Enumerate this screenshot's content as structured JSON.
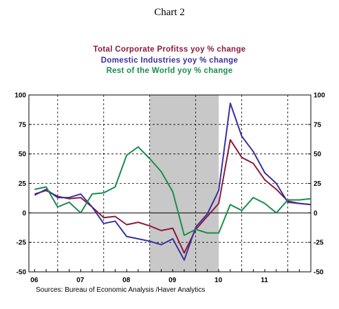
{
  "chart_data": {
    "type": "line",
    "title": "Chart 2",
    "legend_placement": "top-center",
    "series": [
      {
        "name": "Total Corporate Profitss   yoy % change",
        "color": "#8b1a3a",
        "values": [
          16,
          19,
          14,
          12,
          13,
          5,
          -4,
          -3,
          -10,
          -8,
          -11,
          -15,
          -13,
          -34,
          -14,
          -3,
          8,
          62,
          47,
          42,
          28,
          20,
          10,
          8,
          7
        ]
      },
      {
        "name": "Domestic Industries   yoy % change",
        "color": "#3b2f9e",
        "values": [
          15,
          20,
          13,
          13,
          16,
          5,
          -9,
          -7,
          -20,
          -22,
          -24,
          -27,
          -22,
          -40,
          -12,
          -1,
          19,
          93,
          65,
          52,
          34,
          25,
          9,
          8,
          7
        ]
      },
      {
        "name": "Rest of the World   yoy % change",
        "color": "#1a8c4e",
        "values": [
          20,
          22,
          5,
          9,
          0,
          16,
          17,
          22,
          49,
          56,
          46,
          35,
          18,
          -19,
          -14,
          -17,
          -17,
          7,
          2,
          13,
          8,
          0,
          11,
          11,
          12
        ]
      }
    ],
    "x": [
      2005.5,
      2005.75,
      2006.0,
      2006.25,
      2006.5,
      2006.75,
      2007.0,
      2007.25,
      2007.5,
      2007.75,
      2008.0,
      2008.25,
      2008.5,
      2008.75,
      2009.0,
      2009.25,
      2009.5,
      2009.75,
      2010.0,
      2010.25,
      2010.5,
      2010.75,
      2011.0,
      2011.25,
      2011.5
    ],
    "x_tick_labels": [
      "06",
      "07",
      "08",
      "09",
      "10",
      "11"
    ],
    "y_ticks": [
      100,
      75,
      50,
      25,
      0,
      -25,
      -50
    ],
    "y_tick_labels": [
      "100",
      "75",
      "50",
      "25",
      "0",
      "-25",
      "-50"
    ],
    "ylim": [
      -50,
      100
    ],
    "recession_shading": [
      2008.0,
      2009.5
    ],
    "grid": "dashed",
    "source": "Sources:  Bureau of Economic Analysis /Haver Analytics"
  }
}
